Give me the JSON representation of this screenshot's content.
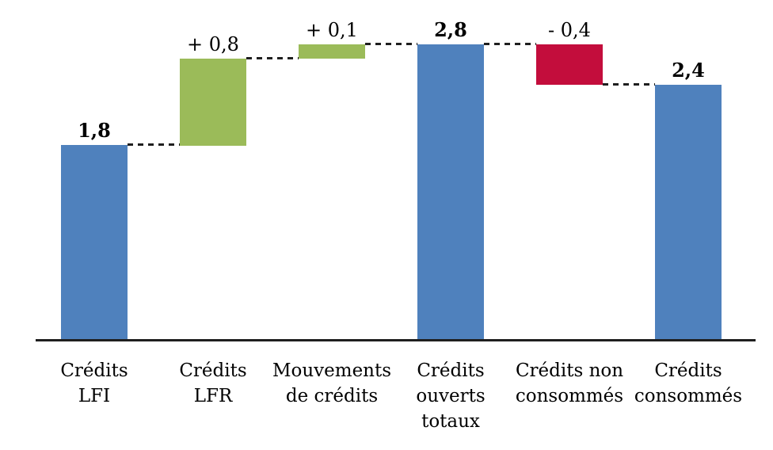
{
  "chart_data": {
    "type": "bar",
    "subtype": "waterfall",
    "title": "",
    "xlabel": "",
    "ylabel": "",
    "ylim": [
      0,
      3
    ],
    "grid": false,
    "legend": false,
    "decimal_separator": ",",
    "connector_style": "dashed",
    "categories": [
      "Crédits LFI",
      "Crédits LFR",
      "Mouvements de crédits",
      "Crédits ouverts totaux",
      "Crédits non consommés",
      "Crédits consommés"
    ],
    "values": [
      1.8,
      0.8,
      0.1,
      2.8,
      -0.4,
      2.4
    ],
    "bars": [
      {
        "category_lines": [
          "Crédits",
          "LFI"
        ],
        "value_label": "1,8",
        "value": 1.8,
        "role": "total",
        "color": "blue",
        "plot_from": 0,
        "plot_to": 1.8
      },
      {
        "category_lines": [
          "Crédits",
          "LFR"
        ],
        "value_label": "+ 0,8",
        "value": 0.8,
        "role": "increase",
        "color": "green",
        "plot_from": 1.8,
        "plot_to": 2.6
      },
      {
        "category_lines": [
          "Mouvements",
          "de crédits"
        ],
        "value_label": "+ 0,1",
        "value": 0.1,
        "role": "increase",
        "color": "green",
        "plot_from": 2.6,
        "plot_to": 2.73
      },
      {
        "category_lines": [
          "Crédits",
          "ouverts",
          "totaux"
        ],
        "value_label": "2,8",
        "value": 2.8,
        "role": "total",
        "color": "blue",
        "plot_from": 0,
        "plot_to": 2.73
      },
      {
        "category_lines": [
          "Crédits non",
          "consommés"
        ],
        "value_label": "- 0,4",
        "value": -0.4,
        "role": "decrease",
        "color": "red",
        "plot_from": 2.73,
        "plot_to": 2.36
      },
      {
        "category_lines": [
          "Crédits",
          "consommés"
        ],
        "value_label": "2,4",
        "value": 2.4,
        "role": "total",
        "color": "blue",
        "plot_from": 0,
        "plot_to": 2.36
      }
    ],
    "colors": {
      "blue": "#4F81BD",
      "green": "#9BBB59",
      "red": "#C30D3C",
      "axis": "#1F1F1F",
      "connector": "#1F1F1F",
      "text": "#000000"
    }
  }
}
